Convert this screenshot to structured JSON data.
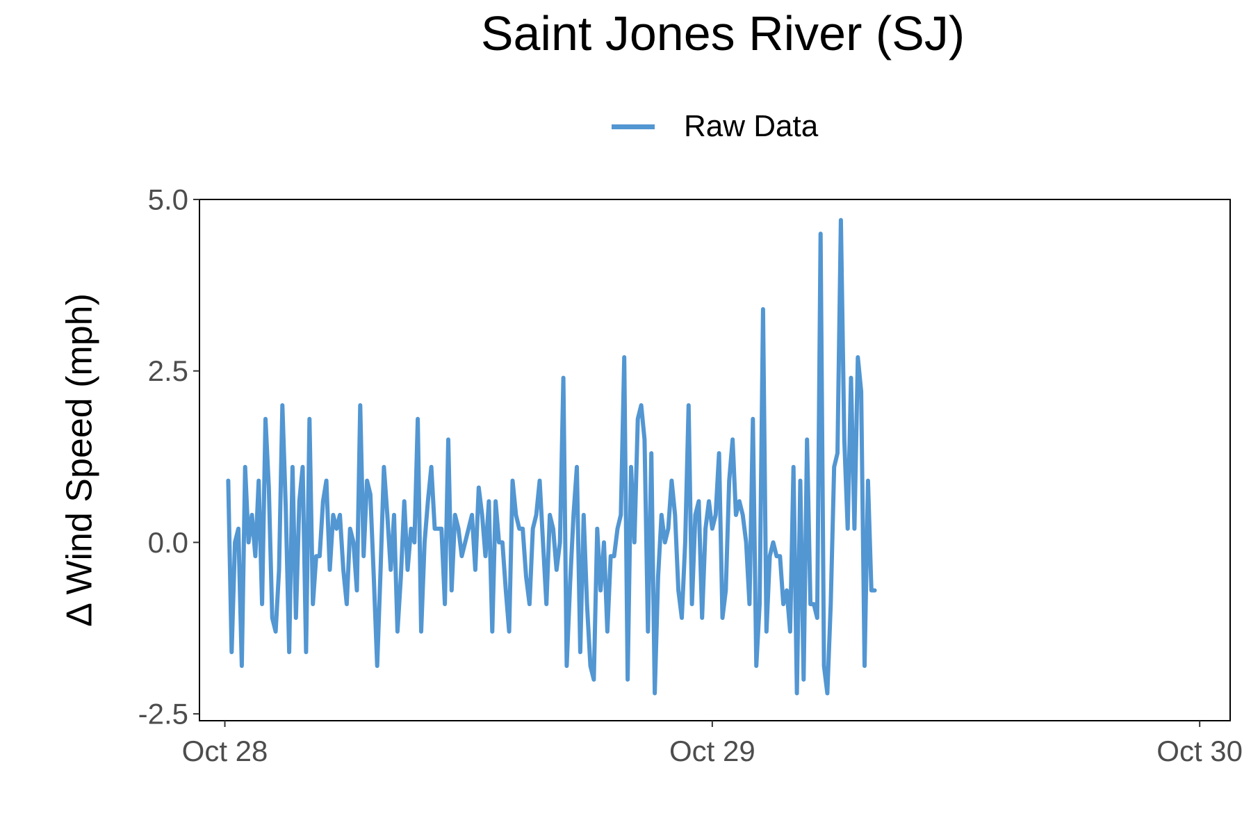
{
  "chart_data": {
    "type": "line",
    "title": "Saint Jones River (SJ)",
    "xlabel": "",
    "ylabel": "Δ Wind Speed (mph)",
    "xlim": [
      "2023-10-27T22:45",
      "2023-10-30T01:30"
    ],
    "ylim": [
      -2.6,
      5.0
    ],
    "yticks": [
      -2.5,
      0.0,
      2.5,
      5.0
    ],
    "ytick_labels": [
      "-2.5",
      "0.0",
      "2.5",
      "5.0"
    ],
    "xticks": [
      "2023-10-28T00:00",
      "2023-10-29T00:00",
      "2023-10-30T00:00"
    ],
    "xtick_labels": [
      "Oct 28",
      "Oct 29",
      "Oct 30"
    ],
    "grid": false,
    "legend": "top",
    "colors": {
      "series": "#5296d2"
    },
    "series": [
      {
        "name": "Raw Data",
        "x_start": "2023-10-28T00:10",
        "x_step_minutes": 10,
        "values": [
          0.9,
          -1.6,
          0.0,
          0.2,
          -1.8,
          1.1,
          0.0,
          0.4,
          -0.2,
          0.9,
          -0.9,
          1.8,
          0.8,
          -1.1,
          -1.3,
          -0.4,
          2.0,
          0.5,
          -1.6,
          1.1,
          -1.1,
          0.6,
          1.1,
          -1.6,
          1.8,
          -0.9,
          -0.2,
          -0.2,
          0.6,
          0.9,
          -0.4,
          0.4,
          0.2,
          0.4,
          -0.4,
          -0.9,
          0.2,
          0.0,
          -0.7,
          2.0,
          -0.2,
          0.9,
          0.7,
          -0.5,
          -1.8,
          -0.4,
          1.1,
          0.4,
          -0.4,
          0.4,
          -1.3,
          -0.5,
          0.6,
          -0.4,
          0.2,
          0.0,
          1.8,
          -1.3,
          0.0,
          0.6,
          1.1,
          0.2,
          0.2,
          0.2,
          -0.9,
          1.5,
          -0.7,
          0.4,
          0.2,
          -0.2,
          0.0,
          0.2,
          0.4,
          -0.4,
          0.8,
          0.4,
          -0.2,
          0.6,
          -1.3,
          0.6,
          0.0,
          0.0,
          -0.7,
          -1.3,
          0.9,
          0.4,
          0.2,
          0.2,
          -0.5,
          -0.9,
          0.2,
          0.4,
          0.9,
          0.0,
          -0.9,
          0.4,
          0.2,
          -0.4,
          0.0,
          2.4,
          -1.8,
          -0.6,
          0.4,
          1.1,
          -1.6,
          0.4,
          -0.9,
          -1.8,
          -2.0,
          0.2,
          -0.7,
          0.0,
          -1.3,
          -0.2,
          -0.2,
          0.2,
          0.4,
          2.7,
          -2.0,
          1.1,
          0.0,
          1.8,
          2.0,
          1.5,
          -1.3,
          1.3,
          -2.2,
          -0.5,
          0.4,
          0.0,
          0.2,
          0.9,
          0.4,
          -0.7,
          -1.1,
          0.0,
          2.0,
          -0.9,
          0.4,
          0.6,
          -1.1,
          0.2,
          0.6,
          0.2,
          0.4,
          1.3,
          -1.1,
          -0.7,
          0.9,
          1.5,
          0.4,
          0.6,
          0.4,
          0.0,
          -0.9,
          1.8,
          -1.8,
          -0.9,
          3.4,
          -1.3,
          -0.2,
          0.0,
          -0.2,
          -0.2,
          -0.9,
          -0.7,
          -1.3,
          1.1,
          -2.2,
          0.9,
          -2.0,
          1.5,
          -0.9,
          -0.9,
          -1.1,
          4.5,
          -1.8,
          -2.2,
          -0.9,
          1.1,
          1.3,
          4.7,
          1.5,
          0.2,
          2.4,
          0.2,
          2.7,
          2.2,
          -1.8,
          0.9,
          -0.7,
          -0.7
        ]
      }
    ]
  }
}
